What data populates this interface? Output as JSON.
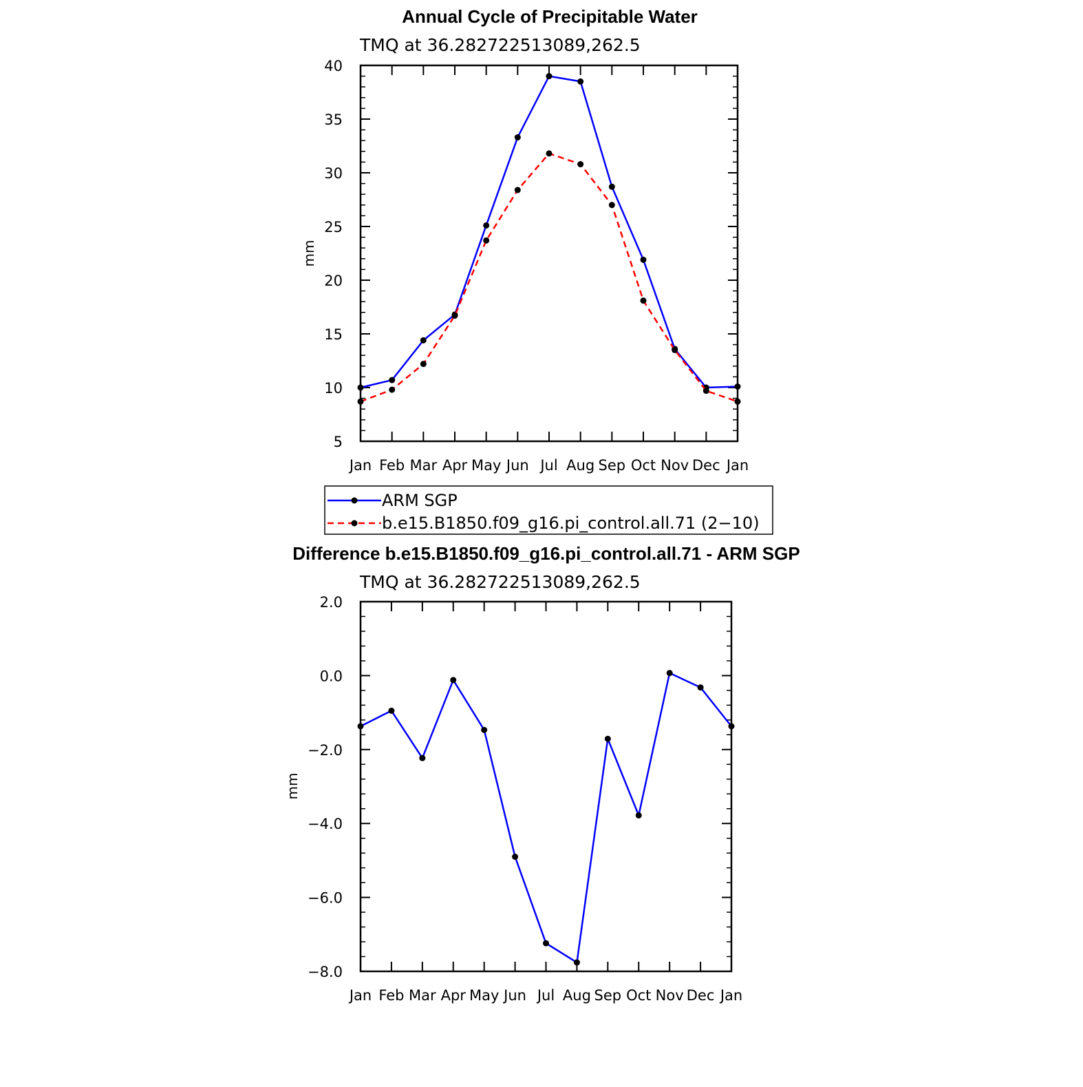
{
  "chart_data": [
    {
      "type": "line",
      "title": "Annual Cycle of Precipitable Water",
      "subtitle": "TMQ  at  36.282722513089,262.5",
      "ylabel": "mm",
      "xlabel": "",
      "categories": [
        "Jan",
        "Feb",
        "Mar",
        "Apr",
        "May",
        "Jun",
        "Jul",
        "Aug",
        "Sep",
        "Oct",
        "Nov",
        "Dec",
        "Jan"
      ],
      "ylim": [
        5,
        40
      ],
      "yticks": [
        5,
        10,
        15,
        20,
        25,
        30,
        35,
        40
      ],
      "ytick_labels": [
        "5",
        "10",
        "15",
        "20",
        "25",
        "30",
        "35",
        "40"
      ],
      "series": [
        {
          "name": "ARM  SGP",
          "color": "#0000ff",
          "dash": "solid",
          "values": [
            10.0,
            10.7,
            14.4,
            16.8,
            25.1,
            33.3,
            39.0,
            38.5,
            28.7,
            21.9,
            13.6,
            10.0,
            10.1
          ]
        },
        {
          "name": "b.e15.B1850.f09_g16.pi_control.all.71  (2−10)",
          "color": "#ff0000",
          "dash": "dashed",
          "values": [
            8.7,
            9.8,
            12.2,
            16.7,
            23.7,
            28.4,
            31.8,
            30.8,
            27.0,
            18.1,
            13.5,
            9.7,
            8.7
          ]
        }
      ],
      "legend": "bottom"
    },
    {
      "type": "line",
      "title": "Difference b.e15.B1850.f09_g16.pi_control.all.71 - ARM SGP",
      "subtitle": "TMQ  at  36.282722513089,262.5",
      "ylabel": "mm",
      "xlabel": "",
      "categories": [
        "Jan",
        "Feb",
        "Mar",
        "Apr",
        "May",
        "Jun",
        "Jul",
        "Aug",
        "Sep",
        "Oct",
        "Nov",
        "Dec",
        "Jan"
      ],
      "ylim": [
        -8,
        2
      ],
      "yticks": [
        -8,
        -6,
        -4,
        -2,
        0,
        2
      ],
      "ytick_labels": [
        "−8.0",
        "−6.0",
        "−4.0",
        "−2.0",
        "0.0",
        "2.0"
      ],
      "series": [
        {
          "name": "Difference",
          "color": "#0000ff",
          "dash": "solid",
          "values": [
            -1.37,
            -0.95,
            -2.23,
            -0.12,
            -1.47,
            -4.9,
            -7.24,
            -7.76,
            -1.71,
            -3.78,
            0.07,
            -0.32,
            -1.37
          ]
        }
      ]
    }
  ]
}
